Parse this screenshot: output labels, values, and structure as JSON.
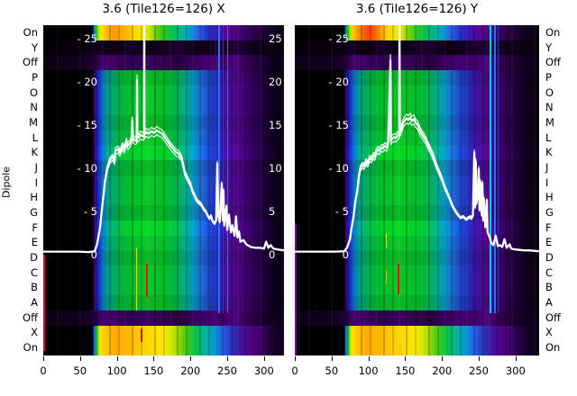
{
  "figure": {
    "ylabel": "Dipole"
  },
  "colors": {
    "background": "#ffffff",
    "panel_background": "#000000",
    "curve": "#ffffff",
    "outside_text": "#000000",
    "inside_tick_text": "#ffffff",
    "flag_red": "#e61400",
    "flag_yellow": "#d2e600",
    "flag_magenta": "#c80055",
    "streak_blue": "#2e6eff",
    "streak_cyan": "#00c8ff"
  },
  "rows": [
    {
      "label": "On",
      "type": "bright"
    },
    {
      "label": "Y",
      "type": "dark"
    },
    {
      "label": "Off",
      "type": "off"
    },
    {
      "label": "P",
      "type": "band"
    },
    {
      "label": "O",
      "type": "band"
    },
    {
      "label": "N",
      "type": "band"
    },
    {
      "label": "M",
      "type": "band"
    },
    {
      "label": "L",
      "type": "band"
    },
    {
      "label": "K",
      "type": "band"
    },
    {
      "label": "J",
      "type": "band"
    },
    {
      "label": "I",
      "type": "band"
    },
    {
      "label": "H",
      "type": "band"
    },
    {
      "label": "G",
      "type": "band"
    },
    {
      "label": "F",
      "type": "band"
    },
    {
      "label": "E",
      "type": "band"
    },
    {
      "label": "D",
      "type": "band"
    },
    {
      "label": "C",
      "type": "band"
    },
    {
      "label": "B",
      "type": "band"
    },
    {
      "label": "A",
      "type": "band"
    },
    {
      "label": "Off",
      "type": "off"
    },
    {
      "label": "X",
      "type": "bright2"
    },
    {
      "label": "On",
      "type": "bright2"
    }
  ],
  "y_ticks": {
    "values": [
      25,
      20,
      15,
      10,
      5,
      0
    ],
    "left_labels": [
      "- 25",
      "- 20",
      "- 15",
      "- 10",
      "- 5",
      "0"
    ],
    "right_labels": [
      "25",
      "20",
      "15",
      "10",
      "5",
      "0"
    ]
  },
  "chart_data": {
    "type": "heatmap",
    "description": "Two-panel per-dipole spectrum waterfall (X and Y polarisations) with white median bandpass curves overlaid; rows labelled by dipole On/Y/Off/P..A/Off/X/On; vertical coloured lines mark flagged channels.",
    "x_range": [
      0,
      327
    ],
    "x_ticks": [
      0,
      50,
      100,
      150,
      200,
      250,
      300
    ],
    "overlay_y_ticks": [
      25,
      20,
      15,
      10,
      5,
      0
    ],
    "row_categories": [
      "On",
      "Y",
      "Off",
      "P",
      "O",
      "N",
      "M",
      "L",
      "K",
      "J",
      "I",
      "H",
      "G",
      "F",
      "E",
      "D",
      "C",
      "B",
      "A",
      "Off",
      "X",
      "On"
    ],
    "panels": [
      {
        "title": "3.6 (Tile126=126) X",
        "curve": [
          [
            0,
            0.35
          ],
          [
            49,
            0.35
          ],
          [
            61,
            0.3
          ],
          [
            70,
            0.4
          ],
          [
            73,
            1.2
          ],
          [
            77,
            3
          ],
          [
            80,
            5.5
          ],
          [
            84,
            8.5
          ],
          [
            87,
            10
          ],
          [
            91,
            11
          ],
          [
            94,
            11.3
          ],
          [
            97,
            10.8
          ],
          [
            98,
            12
          ],
          [
            102,
            12.2
          ],
          [
            104,
            11.8
          ],
          [
            108,
            12.6
          ],
          [
            110,
            12.2
          ],
          [
            113,
            13.1
          ],
          [
            115,
            12.6
          ],
          [
            118,
            12.9
          ],
          [
            120,
            13.3
          ],
          [
            121,
            15.5
          ],
          [
            122,
            13.4
          ],
          [
            125,
            13.2
          ],
          [
            127,
            13.3
          ],
          [
            127.5,
            20.2
          ],
          [
            128,
            13.5
          ],
          [
            130,
            13.6
          ],
          [
            132,
            13.9
          ],
          [
            135,
            13.7
          ],
          [
            137,
            13.8
          ],
          [
            137.3,
            30
          ],
          [
            137.6,
            13.9
          ],
          [
            140,
            14.2
          ],
          [
            143,
            14
          ],
          [
            147,
            14.3
          ],
          [
            151,
            14.1
          ],
          [
            154,
            14.4
          ],
          [
            158,
            14.2
          ],
          [
            162,
            14
          ],
          [
            165,
            13.6
          ],
          [
            169,
            13.1
          ],
          [
            173,
            12.6
          ],
          [
            177,
            12.2
          ],
          [
            180,
            11.9
          ],
          [
            184,
            11.7
          ],
          [
            188,
            11.2
          ],
          [
            190,
            10.5
          ],
          [
            192,
            9.6
          ],
          [
            196,
            8.8
          ],
          [
            200,
            8.2
          ],
          [
            202,
            7.6
          ],
          [
            206,
            6.8
          ],
          [
            208,
            6.4
          ],
          [
            211,
            6.1
          ],
          [
            215,
            5.8
          ],
          [
            218,
            5.3
          ],
          [
            221,
            5
          ],
          [
            223,
            4.6
          ],
          [
            226,
            4.2
          ],
          [
            228,
            4.5
          ],
          [
            230,
            3.9
          ],
          [
            233,
            3.6
          ],
          [
            235,
            4
          ],
          [
            236.5,
            10.5
          ],
          [
            238,
            4.5
          ],
          [
            240,
            3.8
          ],
          [
            242.5,
            8.2
          ],
          [
            244,
            4
          ],
          [
            245,
            7.4
          ],
          [
            246,
            3.4
          ],
          [
            249,
            5.6
          ],
          [
            250,
            2.9
          ],
          [
            252.5,
            4.6
          ],
          [
            255,
            2.6
          ],
          [
            257,
            3.4
          ],
          [
            260,
            2.2
          ],
          [
            262,
            4.4
          ],
          [
            264,
            2
          ],
          [
            266,
            2.7
          ],
          [
            268,
            1.5
          ],
          [
            272,
            1.7
          ],
          [
            276,
            1.2
          ],
          [
            282,
            0.9
          ],
          [
            288,
            0.8
          ],
          [
            294,
            0.8
          ],
          [
            300,
            0.7
          ],
          [
            303,
            1.5
          ],
          [
            306,
            0.8
          ],
          [
            309,
            1.1
          ],
          [
            313,
            0.7
          ],
          [
            319,
            0.6
          ],
          [
            327,
            0.5
          ]
        ],
        "marks": [
          [
            126,
            247,
            317,
            "#d2e600",
            1
          ],
          [
            140,
            265,
            302,
            "#e61400",
            2
          ],
          [
            132,
            337,
            352,
            "#cc1400",
            2
          ],
          [
            0.5,
            255,
            362,
            "#c80055",
            2
          ],
          [
            238,
            0,
            320,
            "#2e6eff",
            2
          ],
          [
            243.5,
            0,
            320,
            "#1e3cdc",
            1
          ],
          [
            249.5,
            0,
            320,
            "#3c64ff",
            1
          ]
        ]
      },
      {
        "title": "3.6 (Tile126=126) Y",
        "curve": [
          [
            0,
            0.35
          ],
          [
            55,
            0.35
          ],
          [
            67,
            0.4
          ],
          [
            71,
            0.8
          ],
          [
            75,
            1.8
          ],
          [
            77,
            3
          ],
          [
            80,
            4.5
          ],
          [
            82,
            6
          ],
          [
            85,
            7.5
          ],
          [
            87,
            9
          ],
          [
            89,
            10
          ],
          [
            92,
            10.4
          ],
          [
            94,
            10.2
          ],
          [
            97,
            10.8
          ],
          [
            99,
            10.5
          ],
          [
            102,
            11.2
          ],
          [
            104,
            11
          ],
          [
            107,
            11.5
          ],
          [
            109,
            11.3
          ],
          [
            110,
            11.8
          ],
          [
            113,
            12.2
          ],
          [
            115,
            12
          ],
          [
            118,
            12.4
          ],
          [
            120,
            12.3
          ],
          [
            122,
            12.6
          ],
          [
            125,
            12.4
          ],
          [
            127,
            13
          ],
          [
            130,
            22.5
          ],
          [
            130.6,
            13.2
          ],
          [
            132,
            13.4
          ],
          [
            135,
            13.6
          ],
          [
            137,
            13.5
          ],
          [
            140,
            13.8
          ],
          [
            142,
            14
          ],
          [
            142.3,
            30
          ],
          [
            142.8,
            14.2
          ],
          [
            145,
            14.6
          ],
          [
            147,
            15.2
          ],
          [
            149,
            15.5
          ],
          [
            152,
            15.8
          ],
          [
            154,
            15.6
          ],
          [
            157,
            15.9
          ],
          [
            159,
            15.5
          ],
          [
            162,
            15.7
          ],
          [
            164,
            15.3
          ],
          [
            167,
            15
          ],
          [
            169,
            14.6
          ],
          [
            171,
            14.2
          ],
          [
            174,
            13.8
          ],
          [
            178,
            13.3
          ],
          [
            181,
            12.7
          ],
          [
            185,
            12
          ],
          [
            189,
            11.2
          ],
          [
            192,
            10.4
          ],
          [
            196,
            9.6
          ],
          [
            200,
            8.8
          ],
          [
            203,
            8
          ],
          [
            207,
            7.2
          ],
          [
            211,
            6.4
          ],
          [
            214,
            5.7
          ],
          [
            218,
            5.1
          ],
          [
            222,
            4.6
          ],
          [
            225,
            4.3
          ],
          [
            229,
            4.4
          ],
          [
            233,
            4.1
          ],
          [
            236,
            4.3
          ],
          [
            239,
            4.4
          ],
          [
            240,
            4.2
          ],
          [
            242,
            4.5
          ],
          [
            244,
            11.8
          ],
          [
            245,
            5.5
          ],
          [
            246,
            10.8
          ],
          [
            247,
            6
          ],
          [
            249,
            7
          ],
          [
            250,
            9.9
          ],
          [
            251,
            5.2
          ],
          [
            252,
            8.5
          ],
          [
            254,
            4.6
          ],
          [
            255,
            8.3
          ],
          [
            256,
            4
          ],
          [
            257,
            6.5
          ],
          [
            259,
            3.2
          ],
          [
            261,
            6.3
          ],
          [
            262,
            2.6
          ],
          [
            265,
            2
          ],
          [
            267,
            1.4
          ],
          [
            270,
            1.1
          ],
          [
            273,
            2.2
          ],
          [
            276,
            1
          ],
          [
            279,
            1.1
          ],
          [
            282,
            0.9
          ],
          [
            285,
            1.8
          ],
          [
            288,
            0.8
          ],
          [
            292,
            1.2
          ],
          [
            294,
            0.7
          ],
          [
            300,
            0.6
          ],
          [
            306,
            0.55
          ],
          [
            312,
            0.5
          ],
          [
            319,
            0.5
          ],
          [
            325,
            0.45
          ],
          [
            332,
            0.4
          ]
        ],
        "marks": [
          [
            124,
            232,
            248,
            "#d2e600",
            1
          ],
          [
            124,
            272,
            288,
            "#b4d200",
            1
          ],
          [
            140,
            265,
            299,
            "#e61400",
            2
          ],
          [
            142,
            352,
            367,
            "#ffc800",
            2
          ],
          [
            0.5,
            220,
            367,
            "#6e00a0",
            2
          ],
          [
            265,
            0,
            320,
            "#00c8ff",
            2
          ],
          [
            270.5,
            0,
            320,
            "#2e6eff",
            2
          ],
          [
            276,
            0,
            320,
            "#1e3cdc",
            1
          ]
        ]
      }
    ]
  }
}
